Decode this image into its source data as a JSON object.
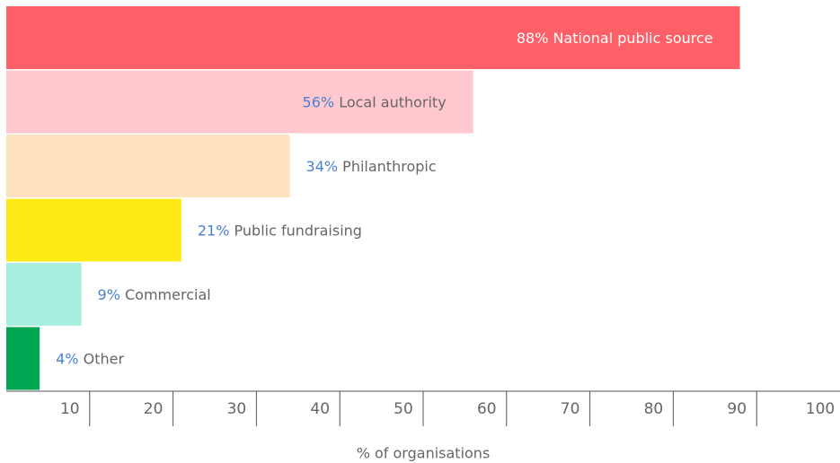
{
  "chart_data": {
    "type": "bar",
    "orientation": "horizontal",
    "categories": [
      "National public source",
      "Local authority",
      "Philanthropic",
      "Public fundraising",
      "Commercial",
      "Other"
    ],
    "values": [
      88,
      56,
      34,
      21,
      9,
      4
    ],
    "value_labels": [
      "88%",
      "56%",
      "34%",
      "21%",
      "9%",
      "4%"
    ],
    "colors": [
      "#ff5f66",
      "#ffc8cf",
      "#ffe3c0",
      "#ffea17",
      "#a8efe0",
      "#00a651"
    ],
    "xlabel": "% of organisations",
    "xlim": [
      0,
      100
    ],
    "xticks": [
      10,
      20,
      30,
      40,
      50,
      60,
      70,
      80,
      90,
      100
    ]
  }
}
